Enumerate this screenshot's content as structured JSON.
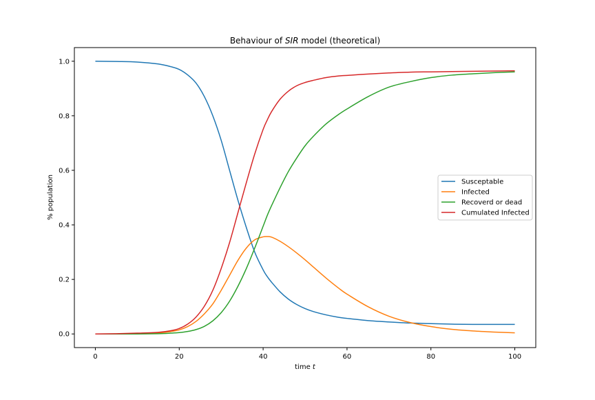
{
  "chart_data": {
    "type": "line",
    "title_parts": {
      "before": "Behaviour of ",
      "italic": "SIR",
      "after": " model (theoretical)"
    },
    "xlabel_parts": {
      "before": "time ",
      "italic": "t"
    },
    "ylabel": "% population",
    "xlim": [
      -5,
      105
    ],
    "ylim": [
      -0.05,
      1.05
    ],
    "xticks": [
      0,
      20,
      40,
      60,
      80,
      100
    ],
    "yticks": [
      0.0,
      0.2,
      0.4,
      0.6,
      0.8,
      1.0
    ],
    "xtick_labels": [
      "0",
      "20",
      "40",
      "60",
      "80",
      "100"
    ],
    "ytick_labels": [
      "0.0",
      "0.2",
      "0.4",
      "0.6",
      "0.8",
      "1.0"
    ],
    "grid": false,
    "legend_position": "center-right",
    "x": [
      0,
      5,
      10,
      15,
      18,
      20,
      22,
      24,
      26,
      28,
      30,
      32,
      34,
      36,
      38,
      40,
      41,
      42,
      44,
      46,
      48,
      50,
      52,
      55,
      58,
      60,
      65,
      70,
      75,
      80,
      85,
      90,
      95,
      100
    ],
    "series": [
      {
        "name": "Susceptable",
        "color": "#1f77b4",
        "values": [
          1.0,
          0.999,
          0.997,
          0.99,
          0.98,
          0.97,
          0.95,
          0.92,
          0.87,
          0.8,
          0.71,
          0.6,
          0.49,
          0.39,
          0.3,
          0.235,
          0.21,
          0.19,
          0.155,
          0.128,
          0.108,
          0.093,
          0.082,
          0.07,
          0.061,
          0.057,
          0.049,
          0.044,
          0.04,
          0.038,
          0.036,
          0.035,
          0.035,
          0.035
        ]
      },
      {
        "name": "Infected",
        "color": "#ff7f0e",
        "values": [
          0.0,
          0.0,
          0.001,
          0.004,
          0.009,
          0.015,
          0.027,
          0.046,
          0.074,
          0.11,
          0.16,
          0.215,
          0.27,
          0.315,
          0.345,
          0.356,
          0.357,
          0.355,
          0.34,
          0.32,
          0.297,
          0.272,
          0.245,
          0.205,
          0.168,
          0.146,
          0.1,
          0.065,
          0.042,
          0.027,
          0.017,
          0.011,
          0.007,
          0.004
        ]
      },
      {
        "name": "Recoverd or dead",
        "color": "#2ca02c",
        "values": [
          0.0,
          0.0,
          0.0,
          0.001,
          0.003,
          0.005,
          0.009,
          0.016,
          0.028,
          0.048,
          0.078,
          0.12,
          0.175,
          0.24,
          0.315,
          0.395,
          0.435,
          0.47,
          0.535,
          0.595,
          0.645,
          0.69,
          0.725,
          0.77,
          0.805,
          0.825,
          0.87,
          0.905,
          0.925,
          0.94,
          0.949,
          0.954,
          0.958,
          0.961
        ]
      },
      {
        "name": "Cumulated Infected",
        "color": "#d62728",
        "values": [
          0.0,
          0.001,
          0.003,
          0.006,
          0.012,
          0.02,
          0.036,
          0.062,
          0.102,
          0.16,
          0.24,
          0.335,
          0.445,
          0.555,
          0.66,
          0.75,
          0.785,
          0.815,
          0.86,
          0.89,
          0.91,
          0.922,
          0.93,
          0.94,
          0.946,
          0.948,
          0.953,
          0.957,
          0.96,
          0.961,
          0.962,
          0.963,
          0.964,
          0.965
        ]
      }
    ]
  }
}
